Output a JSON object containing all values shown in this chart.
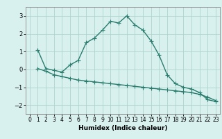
{
  "xlabel": "Humidex (Indice chaleur)",
  "x_main": [
    1,
    2,
    3,
    4,
    5,
    6,
    7,
    8,
    9,
    10,
    11,
    12,
    13,
    14,
    15,
    16,
    17,
    18,
    19,
    20,
    21,
    22,
    23
  ],
  "y_main": [
    1.1,
    0.05,
    -0.05,
    -0.15,
    0.25,
    0.5,
    1.5,
    1.75,
    2.2,
    2.7,
    2.6,
    3.0,
    2.5,
    2.2,
    1.6,
    0.8,
    -0.3,
    -0.8,
    -1.0,
    -1.1,
    -1.3,
    -1.7,
    -1.8
  ],
  "x_trend": [
    1,
    2,
    3,
    4,
    5,
    6,
    7,
    8,
    9,
    10,
    11,
    12,
    13,
    14,
    15,
    16,
    17,
    18,
    19,
    20,
    21,
    22,
    23
  ],
  "y_trend": [
    0.05,
    -0.1,
    -0.3,
    -0.4,
    -0.5,
    -0.6,
    -0.65,
    -0.7,
    -0.75,
    -0.8,
    -0.85,
    -0.9,
    -0.95,
    -1.0,
    -1.05,
    -1.1,
    -1.15,
    -1.2,
    -1.25,
    -1.3,
    -1.4,
    -1.55,
    -1.75
  ],
  "line_color": "#2a7d6e",
  "bg_color": "#d8f0ee",
  "grid_color": "#afd4ce",
  "ylim": [
    -2.5,
    3.5
  ],
  "xlim": [
    -0.5,
    23.5
  ],
  "yticks": [
    -2,
    -1,
    0,
    1,
    2,
    3
  ],
  "xticks": [
    0,
    1,
    2,
    3,
    4,
    5,
    6,
    7,
    8,
    9,
    10,
    11,
    12,
    13,
    14,
    15,
    16,
    17,
    18,
    19,
    20,
    21,
    22,
    23
  ],
  "markersize": 2.5,
  "linewidth": 1.0,
  "tick_fontsize": 5.5,
  "xlabel_fontsize": 6.5
}
